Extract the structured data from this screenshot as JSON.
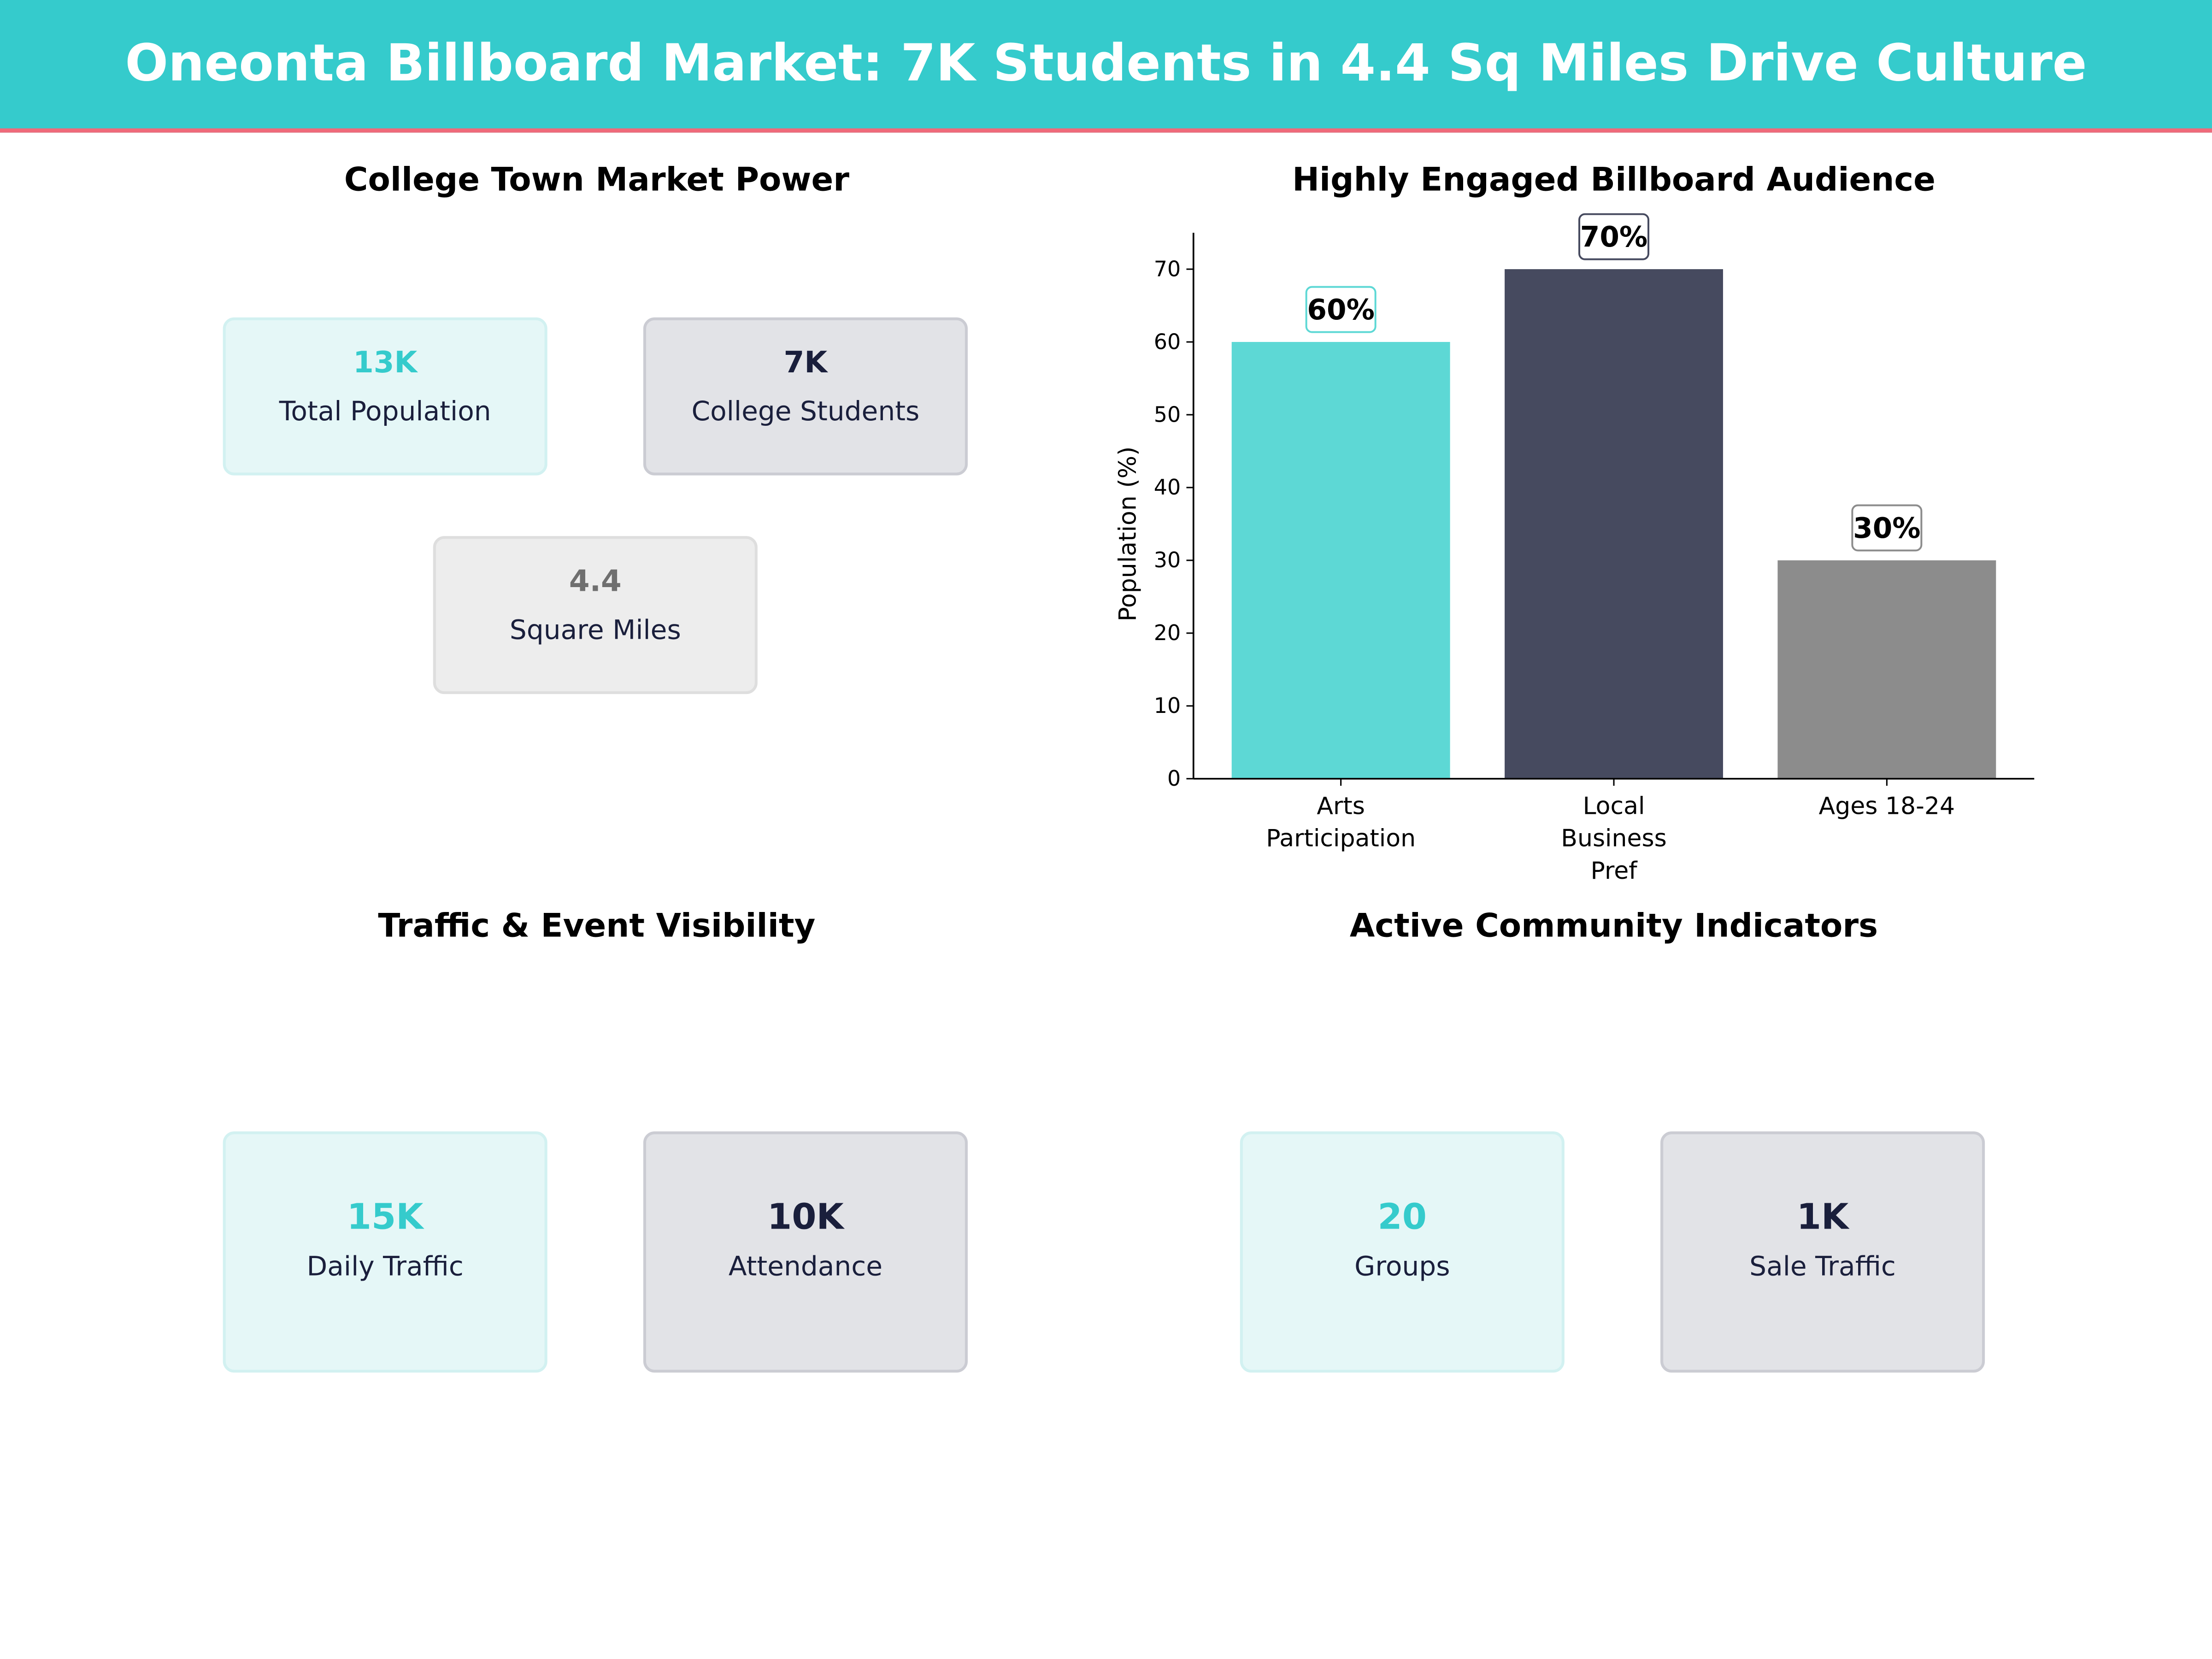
{
  "header": {
    "title": "Oneonta Billboard Market: 7K Students in 4.4 Sq Miles Drive Culture",
    "bg_color": "#35cbcc",
    "accent_line": "#ef6a7a"
  },
  "panels": {
    "market": {
      "title": "College Town Market Power",
      "cards": [
        {
          "value": "13K",
          "label": "Total Population"
        },
        {
          "value": "7K",
          "label": "College Students"
        },
        {
          "value": "4.4",
          "label": "Square Miles"
        }
      ]
    },
    "traffic": {
      "title": "Traffic & Event Visibility",
      "cards": [
        {
          "value": "15K",
          "label": "Daily Traffic"
        },
        {
          "value": "10K",
          "label": "Attendance"
        }
      ]
    },
    "community": {
      "title": "Active Community Indicators",
      "cards": [
        {
          "value": "20",
          "label": "Groups"
        },
        {
          "value": "1K",
          "label": "Sale Traffic"
        }
      ]
    }
  },
  "chart_data": {
    "type": "bar",
    "title": "Highly Engaged Billboard Audience",
    "xlabel": "",
    "ylabel": "Population (%)",
    "categories": [
      [
        "Arts",
        "Participation"
      ],
      [
        "Local",
        "Business",
        "Pref"
      ],
      [
        "Ages 18-24"
      ]
    ],
    "values": [
      60,
      70,
      30
    ],
    "data_labels": [
      "60%",
      "70%",
      "30%"
    ],
    "colors": [
      "#5dd8d5",
      "#464a5f",
      "#8c8c8c"
    ],
    "label_border_colors": [
      "#5dd8d5",
      "#464a5f",
      "#8c8c8c"
    ],
    "ylim": [
      0,
      75
    ],
    "yticks": [
      0,
      10,
      20,
      30,
      40,
      50,
      60,
      70
    ],
    "grid": false
  }
}
